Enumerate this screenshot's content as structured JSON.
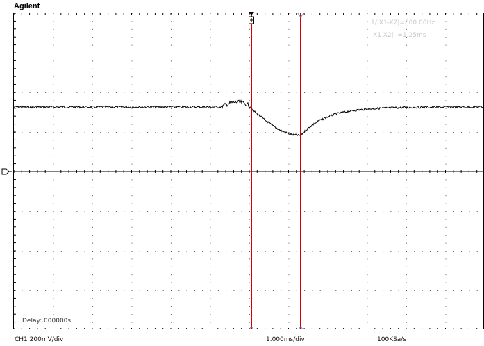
{
  "header": {
    "brand": "Agilent"
  },
  "measurements": {
    "frequency": "1/|X1-X2|=800.00Hz",
    "delta": "|X1-X2|  =1.25ms"
  },
  "delay": "Delay:.000000s",
  "status_bar": {
    "channel": "CH1 200mV/div",
    "timebase": "1.000ms/div",
    "sample_rate": "100KSa/s"
  },
  "colors": {
    "trace": "#000000",
    "cursor": "#d40000",
    "cursor_marker": "#6b8cc4",
    "grid": "#000000",
    "measurement_text": "#c8c8c8"
  },
  "icons": {
    "ground": "ground-reference-icon",
    "trigger": "trigger-position-icon"
  }
}
